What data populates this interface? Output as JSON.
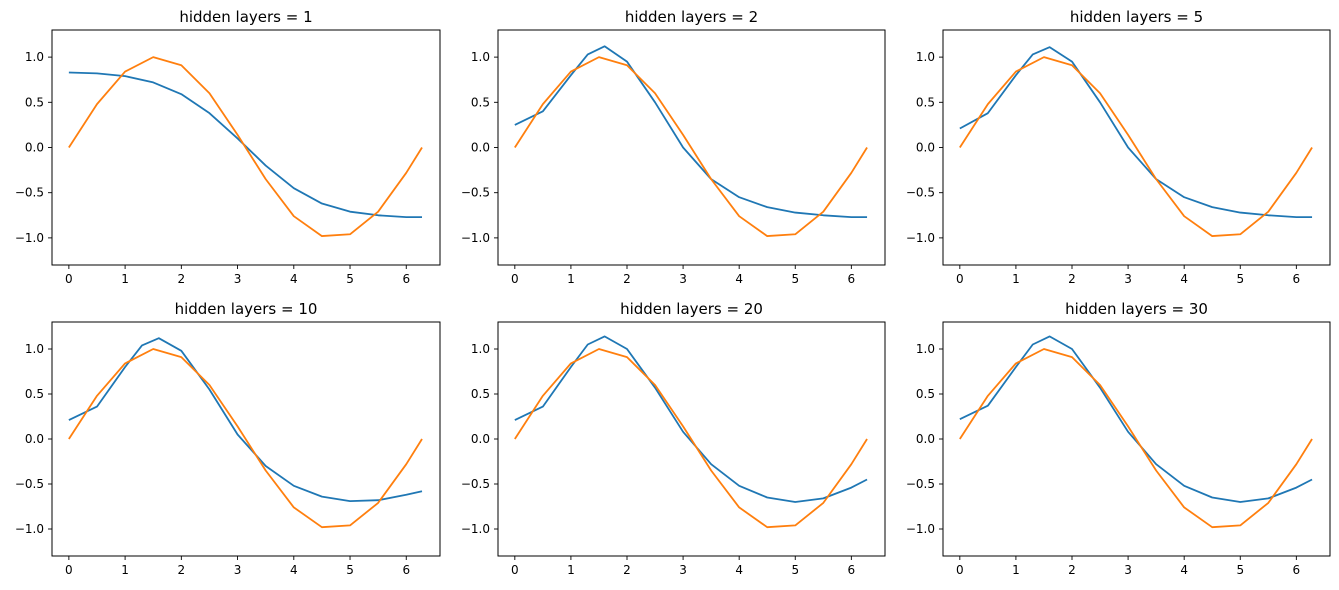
{
  "colors": {
    "series_model": "#1f77b4",
    "series_target": "#ff7f0e"
  },
  "chart_data": [
    {
      "type": "line",
      "title": "hidden layers = 1",
      "xlim": [
        -0.3,
        6.6
      ],
      "ylim": [
        -1.3,
        1.3
      ],
      "xticks": [
        "0",
        "1",
        "2",
        "3",
        "4",
        "5",
        "6"
      ],
      "yticks": [
        "1.0",
        "0.5",
        "0.0",
        "−0.5",
        "−1.0"
      ],
      "grid": false,
      "series": [
        {
          "x": [
            0,
            0.5,
            1,
            1.5,
            2,
            2.5,
            3,
            3.5,
            4,
            4.5,
            5,
            5.5,
            6,
            6.28
          ],
          "y": [
            0.83,
            0.82,
            0.79,
            0.72,
            0.59,
            0.38,
            0.1,
            -0.2,
            -0.45,
            -0.62,
            -0.71,
            -0.75,
            -0.77,
            -0.77
          ],
          "color": "#1f77b4"
        },
        {
          "x": [
            0,
            0.5,
            1,
            1.5,
            2,
            2.5,
            3,
            3.5,
            4,
            4.5,
            5,
            5.5,
            6,
            6.28
          ],
          "y": [
            0,
            0.48,
            0.84,
            1.0,
            0.91,
            0.6,
            0.14,
            -0.35,
            -0.76,
            -0.98,
            -0.96,
            -0.71,
            -0.28,
            0
          ],
          "color": "#ff7f0e"
        }
      ]
    },
    {
      "type": "line",
      "title": "hidden layers = 2",
      "xlim": [
        -0.3,
        6.6
      ],
      "ylim": [
        -1.3,
        1.3
      ],
      "xticks": [
        "0",
        "1",
        "2",
        "3",
        "4",
        "5",
        "6"
      ],
      "yticks": [
        "1.0",
        "0.5",
        "0.0",
        "−0.5",
        "−1.0"
      ],
      "grid": false,
      "series": [
        {
          "x": [
            0,
            0.5,
            1,
            1.3,
            1.6,
            2,
            2.5,
            3,
            3.5,
            4,
            4.5,
            5,
            5.5,
            6,
            6.28
          ],
          "y": [
            0.25,
            0.4,
            0.8,
            1.03,
            1.12,
            0.95,
            0.5,
            0.0,
            -0.35,
            -0.55,
            -0.66,
            -0.72,
            -0.75,
            -0.77,
            -0.77
          ],
          "color": "#1f77b4"
        },
        {
          "x": [
            0,
            0.5,
            1,
            1.5,
            2,
            2.5,
            3,
            3.5,
            4,
            4.5,
            5,
            5.5,
            6,
            6.28
          ],
          "y": [
            0,
            0.48,
            0.84,
            1.0,
            0.91,
            0.6,
            0.14,
            -0.35,
            -0.76,
            -0.98,
            -0.96,
            -0.71,
            -0.28,
            0
          ],
          "color": "#ff7f0e"
        }
      ]
    },
    {
      "type": "line",
      "title": "hidden layers = 5",
      "xlim": [
        -0.3,
        6.6
      ],
      "ylim": [
        -1.3,
        1.3
      ],
      "xticks": [
        "0",
        "1",
        "2",
        "3",
        "4",
        "5",
        "6"
      ],
      "yticks": [
        "1.0",
        "0.5",
        "0.0",
        "−0.5",
        "−1.0"
      ],
      "grid": false,
      "series": [
        {
          "x": [
            0,
            0.5,
            1,
            1.3,
            1.6,
            2,
            2.5,
            3,
            3.5,
            4,
            4.5,
            5,
            5.5,
            6,
            6.28
          ],
          "y": [
            0.21,
            0.38,
            0.8,
            1.03,
            1.11,
            0.95,
            0.5,
            0.0,
            -0.35,
            -0.55,
            -0.66,
            -0.72,
            -0.75,
            -0.77,
            -0.77
          ],
          "color": "#1f77b4"
        },
        {
          "x": [
            0,
            0.5,
            1,
            1.5,
            2,
            2.5,
            3,
            3.5,
            4,
            4.5,
            5,
            5.5,
            6,
            6.28
          ],
          "y": [
            0,
            0.48,
            0.84,
            1.0,
            0.91,
            0.6,
            0.14,
            -0.35,
            -0.76,
            -0.98,
            -0.96,
            -0.71,
            -0.28,
            0
          ],
          "color": "#ff7f0e"
        }
      ]
    },
    {
      "type": "line",
      "title": "hidden layers = 10",
      "xlim": [
        -0.3,
        6.6
      ],
      "ylim": [
        -1.3,
        1.3
      ],
      "xticks": [
        "0",
        "1",
        "2",
        "3",
        "4",
        "5",
        "6"
      ],
      "yticks": [
        "1.0",
        "0.5",
        "0.0",
        "−0.5",
        "−1.0"
      ],
      "grid": false,
      "series": [
        {
          "x": [
            0,
            0.5,
            1,
            1.3,
            1.6,
            2,
            2.5,
            3,
            3.5,
            4,
            4.5,
            5,
            5.5,
            6,
            6.28
          ],
          "y": [
            0.21,
            0.36,
            0.8,
            1.04,
            1.12,
            0.98,
            0.55,
            0.05,
            -0.3,
            -0.52,
            -0.64,
            -0.69,
            -0.68,
            -0.62,
            -0.58
          ],
          "color": "#1f77b4"
        },
        {
          "x": [
            0,
            0.5,
            1,
            1.5,
            2,
            2.5,
            3,
            3.5,
            4,
            4.5,
            5,
            5.5,
            6,
            6.28
          ],
          "y": [
            0,
            0.48,
            0.84,
            1.0,
            0.91,
            0.6,
            0.14,
            -0.35,
            -0.76,
            -0.98,
            -0.96,
            -0.71,
            -0.28,
            0
          ],
          "color": "#ff7f0e"
        }
      ]
    },
    {
      "type": "line",
      "title": "hidden layers = 20",
      "xlim": [
        -0.3,
        6.6
      ],
      "ylim": [
        -1.3,
        1.3
      ],
      "xticks": [
        "0",
        "1",
        "2",
        "3",
        "4",
        "5",
        "6"
      ],
      "yticks": [
        "1.0",
        "0.5",
        "0.0",
        "−0.5",
        "−1.0"
      ],
      "grid": false,
      "series": [
        {
          "x": [
            0,
            0.5,
            1,
            1.3,
            1.6,
            2,
            2.5,
            3,
            3.5,
            4,
            4.5,
            5,
            5.5,
            6,
            6.28
          ],
          "y": [
            0.21,
            0.36,
            0.8,
            1.05,
            1.14,
            1.0,
            0.57,
            0.08,
            -0.28,
            -0.52,
            -0.65,
            -0.7,
            -0.66,
            -0.54,
            -0.45
          ],
          "color": "#1f77b4"
        },
        {
          "x": [
            0,
            0.5,
            1,
            1.5,
            2,
            2.5,
            3,
            3.5,
            4,
            4.5,
            5,
            5.5,
            6,
            6.28
          ],
          "y": [
            0,
            0.48,
            0.84,
            1.0,
            0.91,
            0.6,
            0.14,
            -0.35,
            -0.76,
            -0.98,
            -0.96,
            -0.71,
            -0.28,
            0
          ],
          "color": "#ff7f0e"
        }
      ]
    },
    {
      "type": "line",
      "title": "hidden layers = 30",
      "xlim": [
        -0.3,
        6.6
      ],
      "ylim": [
        -1.3,
        1.3
      ],
      "xticks": [
        "0",
        "1",
        "2",
        "3",
        "4",
        "5",
        "6"
      ],
      "yticks": [
        "1.0",
        "0.5",
        "0.0",
        "−0.5",
        "−1.0"
      ],
      "grid": false,
      "series": [
        {
          "x": [
            0,
            0.5,
            1,
            1.3,
            1.6,
            2,
            2.5,
            3,
            3.5,
            4,
            4.5,
            5,
            5.5,
            6,
            6.28
          ],
          "y": [
            0.22,
            0.37,
            0.8,
            1.05,
            1.14,
            1.0,
            0.57,
            0.08,
            -0.28,
            -0.52,
            -0.65,
            -0.7,
            -0.66,
            -0.54,
            -0.45
          ],
          "color": "#1f77b4"
        },
        {
          "x": [
            0,
            0.5,
            1,
            1.5,
            2,
            2.5,
            3,
            3.5,
            4,
            4.5,
            5,
            5.5,
            6,
            6.28
          ],
          "y": [
            0,
            0.48,
            0.84,
            1.0,
            0.91,
            0.6,
            0.14,
            -0.35,
            -0.76,
            -0.98,
            -0.96,
            -0.71,
            -0.28,
            0
          ],
          "color": "#ff7f0e"
        }
      ]
    }
  ]
}
